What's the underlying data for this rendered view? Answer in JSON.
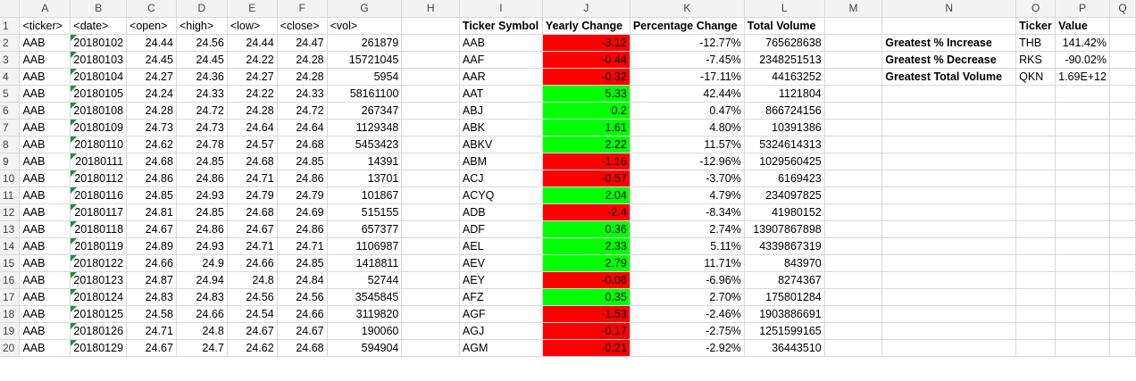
{
  "columns": [
    "A",
    "B",
    "C",
    "D",
    "E",
    "F",
    "G",
    "H",
    "I",
    "J",
    "K",
    "L",
    "M",
    "N",
    "O",
    "P",
    "Q"
  ],
  "headers": {
    "A": "<ticker>",
    "B": "<date>",
    "C": "<open>",
    "D": "<high>",
    "E": "<low>",
    "F": "<close>",
    "G": "<vol>",
    "I": "Ticker Symbol",
    "J": "Yearly Change",
    "K": "Percentage Change",
    "L": "Total Volume",
    "O": "Ticker",
    "P": "Value"
  },
  "raw": [
    [
      "AAB",
      "20180102",
      "24.44",
      "24.56",
      "24.44",
      "24.47",
      "261879"
    ],
    [
      "AAB",
      "20180103",
      "24.45",
      "24.45",
      "24.22",
      "24.28",
      "15721045"
    ],
    [
      "AAB",
      "20180104",
      "24.27",
      "24.36",
      "24.27",
      "24.28",
      "5954"
    ],
    [
      "AAB",
      "20180105",
      "24.24",
      "24.33",
      "24.22",
      "24.33",
      "58161100"
    ],
    [
      "AAB",
      "20180108",
      "24.28",
      "24.72",
      "24.28",
      "24.72",
      "267347"
    ],
    [
      "AAB",
      "20180109",
      "24.73",
      "24.73",
      "24.64",
      "24.64",
      "1129348"
    ],
    [
      "AAB",
      "20180110",
      "24.62",
      "24.78",
      "24.57",
      "24.68",
      "5453423"
    ],
    [
      "AAB",
      "20180111",
      "24.68",
      "24.85",
      "24.68",
      "24.85",
      "14391"
    ],
    [
      "AAB",
      "20180112",
      "24.86",
      "24.86",
      "24.71",
      "24.86",
      "13701"
    ],
    [
      "AAB",
      "20180116",
      "24.85",
      "24.93",
      "24.79",
      "24.79",
      "101867"
    ],
    [
      "AAB",
      "20180117",
      "24.81",
      "24.85",
      "24.68",
      "24.69",
      "515155"
    ],
    [
      "AAB",
      "20180118",
      "24.67",
      "24.86",
      "24.67",
      "24.86",
      "657377"
    ],
    [
      "AAB",
      "20180119",
      "24.89",
      "24.93",
      "24.71",
      "24.71",
      "1106987"
    ],
    [
      "AAB",
      "20180122",
      "24.66",
      "24.9",
      "24.66",
      "24.85",
      "1418811"
    ],
    [
      "AAB",
      "20180123",
      "24.87",
      "24.94",
      "24.8",
      "24.84",
      "52744"
    ],
    [
      "AAB",
      "20180124",
      "24.83",
      "24.83",
      "24.56",
      "24.56",
      "3545845"
    ],
    [
      "AAB",
      "20180125",
      "24.58",
      "24.66",
      "24.54",
      "24.66",
      "3119820"
    ],
    [
      "AAB",
      "20180126",
      "24.71",
      "24.8",
      "24.67",
      "24.67",
      "190060"
    ],
    [
      "AAB",
      "20180129",
      "24.67",
      "24.7",
      "24.62",
      "24.68",
      "594904"
    ]
  ],
  "summary": [
    [
      "AAB",
      "-3.12",
      "-12.77%",
      "765628638"
    ],
    [
      "AAF",
      "-0.44",
      "-7.45%",
      "2348251513"
    ],
    [
      "AAR",
      "-0.32",
      "-17.11%",
      "44163252"
    ],
    [
      "AAT",
      "5.33",
      "42.44%",
      "1121804"
    ],
    [
      "ABJ",
      "0.2",
      "0.47%",
      "866724156"
    ],
    [
      "ABK",
      "1.61",
      "4.80%",
      "10391386"
    ],
    [
      "ABKV",
      "2.22",
      "11.57%",
      "5324614313"
    ],
    [
      "ABM",
      "-1.16",
      "-12.96%",
      "1029560425"
    ],
    [
      "ACJ",
      "-0.57",
      "-3.70%",
      "6169423"
    ],
    [
      "ACYQ",
      "2.04",
      "4.79%",
      "234097825"
    ],
    [
      "ADB",
      "-2.4",
      "-8.34%",
      "41980152"
    ],
    [
      "ADF",
      "0.36",
      "2.74%",
      "13907867898"
    ],
    [
      "AEL",
      "2.33",
      "5.11%",
      "4339867319"
    ],
    [
      "AEV",
      "2.79",
      "11.71%",
      "843970"
    ],
    [
      "AEY",
      "-0.08",
      "-6.96%",
      "8274367"
    ],
    [
      "AFZ",
      "0.35",
      "2.70%",
      "175801284"
    ],
    [
      "AGF",
      "-1.53",
      "-2.46%",
      "1903886691"
    ],
    [
      "AGJ",
      "-0.17",
      "-2.75%",
      "1251599165"
    ],
    [
      "AGM",
      "-0.21",
      "-2.92%",
      "36443510"
    ]
  ],
  "greatest": [
    [
      "Greatest % Increase",
      "THB",
      "141.42%"
    ],
    [
      "Greatest % Decrease",
      "RKS",
      "-90.02%"
    ],
    [
      "Greatest Total Volume",
      "QKN",
      "1.69E+12"
    ]
  ],
  "colors": {
    "positive": "#00ff00",
    "negative": "#ff0000",
    "header_bg": "#f3f3f3"
  }
}
